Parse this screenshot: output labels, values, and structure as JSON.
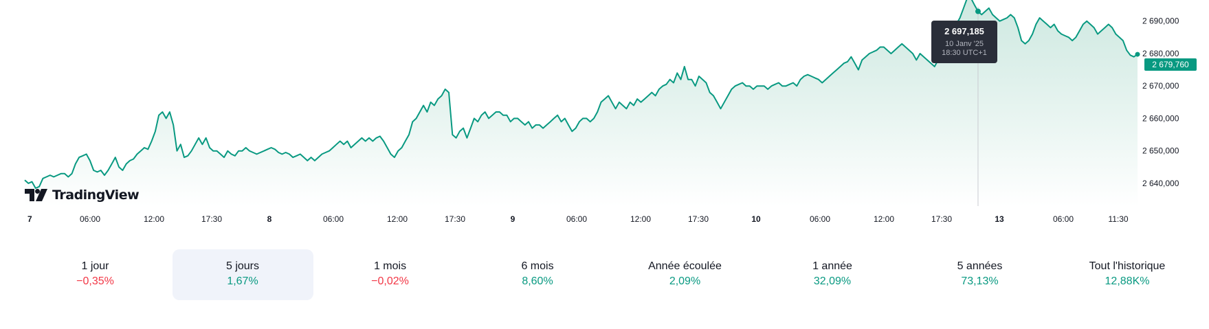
{
  "chart_data": {
    "type": "area",
    "series": [],
    "x_tick_labels": [
      "7",
      "06:00",
      "12:00",
      "17:30",
      "8",
      "06:00",
      "12:00",
      "17:30",
      "9",
      "06:00",
      "12:00",
      "17:30",
      "10",
      "06:00",
      "12:00",
      "17:30",
      "13",
      "06:00",
      "11:30"
    ],
    "x_tick_major": [
      true,
      false,
      false,
      false,
      true,
      false,
      false,
      false,
      true,
      false,
      false,
      false,
      true,
      false,
      false,
      false,
      true,
      false,
      false
    ],
    "y_tick_values": [
      2640000,
      2650000,
      2660000,
      2670000,
      2680000,
      2690000
    ],
    "y_tick_labels": [
      "2 640,000",
      "2 650,000",
      "2 660,000",
      "2 670,000",
      "2 680,000",
      "2 690,000"
    ],
    "ylim": [
      2633000,
      2696500
    ],
    "values": [
      2641,
      2640,
      2640.5,
      2638.5,
      2639,
      2641.5,
      2642,
      2642.5,
      2642,
      2642.5,
      2643,
      2643,
      2642,
      2643,
      2646,
      2648,
      2648.5,
      2649,
      2647,
      2644,
      2643.5,
      2644,
      2642.5,
      2644,
      2646,
      2648,
      2645,
      2644,
      2646,
      2647,
      2647.5,
      2649,
      2650,
      2651,
      2650.5,
      2653,
      2656,
      2661,
      2662,
      2660,
      2662,
      2658,
      2650,
      2652,
      2648,
      2648.5,
      2650,
      2652,
      2654,
      2652,
      2654,
      2651,
      2650,
      2650,
      2649,
      2648,
      2650,
      2649,
      2648.5,
      2650,
      2650,
      2651,
      2650,
      2649.5,
      2649,
      2649.5,
      2650,
      2650.5,
      2651,
      2650.5,
      2649.5,
      2649,
      2649.5,
      2649,
      2648,
      2648.5,
      2649,
      2648,
      2647,
      2648,
      2647,
      2648,
      2649,
      2649.5,
      2650,
      2651,
      2652,
      2653,
      2652,
      2653,
      2651,
      2652,
      2653,
      2654,
      2653,
      2654,
      2653,
      2654,
      2654.5,
      2653,
      2651,
      2649,
      2648,
      2650,
      2651,
      2653,
      2655,
      2659,
      2660,
      2662,
      2664,
      2662,
      2665,
      2664,
      2666,
      2667,
      2669,
      2668,
      2655,
      2654,
      2656,
      2657,
      2654,
      2657,
      2660,
      2659,
      2661,
      2662,
      2660,
      2661,
      2662,
      2662,
      2661,
      2661,
      2659,
      2660,
      2660,
      2659,
      2658,
      2659,
      2657,
      2658,
      2658,
      2657,
      2658,
      2659,
      2660,
      2661,
      2659,
      2660,
      2658,
      2656,
      2657,
      2659,
      2660,
      2660,
      2659,
      2660,
      2662,
      2665,
      2666,
      2667,
      2665,
      2663,
      2665,
      2664,
      2663,
      2665,
      2664,
      2666,
      2665,
      2666,
      2667,
      2668,
      2667,
      2669,
      2670,
      2670.5,
      2672,
      2671,
      2674,
      2672,
      2676,
      2672,
      2672,
      2670,
      2673,
      2672,
      2671,
      2668,
      2667,
      2665,
      2663,
      2665,
      2667,
      2669,
      2670,
      2670.5,
      2671,
      2670,
      2670,
      2669,
      2670,
      2670,
      2670,
      2669,
      2670,
      2670.5,
      2671,
      2670,
      2670,
      2670.5,
      2671,
      2670,
      2672,
      2673,
      2673.5,
      2673,
      2672.5,
      2672,
      2671,
      2672,
      2673,
      2674,
      2675,
      2676,
      2677,
      2677.5,
      2679,
      2677,
      2675,
      2678,
      2679,
      2680,
      2680.5,
      2681,
      2682,
      2682,
      2681,
      2680,
      2681,
      2682,
      2683,
      2682,
      2681,
      2680,
      2678,
      2680,
      2679,
      2678,
      2677,
      2676,
      2678,
      2681,
      2684,
      2686,
      2687,
      2689,
      2691,
      2694,
      2697,
      2697.185,
      2695,
      2693,
      2692,
      2693,
      2694,
      2692,
      2691,
      2690,
      2690.5,
      2691,
      2692,
      2691,
      2688,
      2684,
      2683,
      2684,
      2686,
      2689,
      2691,
      2690,
      2689,
      2688,
      2689,
      2687,
      2686,
      2685.5,
      2685,
      2684,
      2685,
      2687,
      2689,
      2690,
      2689,
      2688,
      2686,
      2687,
      2688,
      2689,
      2688,
      2686,
      2685,
      2684,
      2681,
      2679.5,
      2679,
      2679.76
    ],
    "values_unit": "thousands",
    "last_value_label": "2 679,760",
    "color": "#089981",
    "fill_top": "#c8e6dd",
    "fill_bottom": "#ffffff",
    "crosshair_index": 263,
    "grid": false
  },
  "tooltip": {
    "value": "2 697,185",
    "date": "10 Janv '25",
    "time": "18:30 UTC+1"
  },
  "brand": {
    "logo_text": "TradingView",
    "icon": "tradingview-logo-icon"
  },
  "periods": [
    {
      "label": "1 jour",
      "change": "−0,35%",
      "direction": "down",
      "selected": false
    },
    {
      "label": "5 jours",
      "change": "1,67%",
      "direction": "up",
      "selected": true
    },
    {
      "label": "1 mois",
      "change": "−0,02%",
      "direction": "down",
      "selected": false
    },
    {
      "label": "6 mois",
      "change": "8,60%",
      "direction": "up",
      "selected": false
    },
    {
      "label": "Année écoulée",
      "change": "2,09%",
      "direction": "up",
      "selected": false
    },
    {
      "label": "1 année",
      "change": "32,09%",
      "direction": "up",
      "selected": false
    },
    {
      "label": "5 années",
      "change": "73,13%",
      "direction": "up",
      "selected": false
    },
    {
      "label": "Tout l'historique",
      "change": "12,88K%",
      "direction": "up",
      "selected": false
    }
  ],
  "colors": {
    "positive": "#089981",
    "negative": "#f23645",
    "selected_bg": "#f0f3fa",
    "tooltip_bg": "#2a2e39"
  }
}
